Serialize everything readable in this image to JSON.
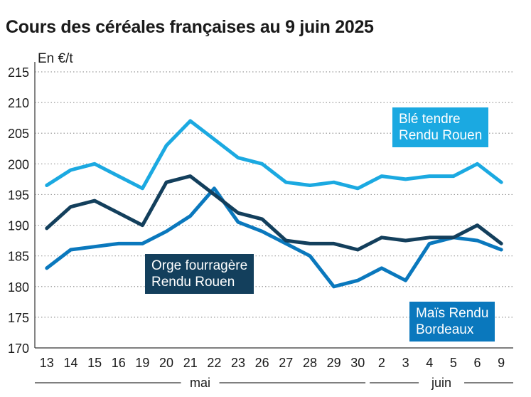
{
  "title": "Cours des céréales françaises au 9 juin 2025",
  "unit_label": "En €/t",
  "chart_data": {
    "type": "line",
    "title": "Cours des céréales françaises au 9 juin 2025",
    "ylabel": "En €/t",
    "ylim": [
      170,
      215
    ],
    "yticks": [
      170,
      175,
      180,
      185,
      190,
      195,
      200,
      205,
      210,
      215
    ],
    "categories": [
      "13",
      "14",
      "15",
      "16",
      "19",
      "20",
      "21",
      "22",
      "23",
      "26",
      "27",
      "28",
      "29",
      "30",
      "2",
      "3",
      "4",
      "5",
      "6",
      "9"
    ],
    "months": [
      {
        "label": "mai",
        "from": 0,
        "to": 13
      },
      {
        "label": "juin",
        "from": 14,
        "to": 19
      }
    ],
    "series": [
      {
        "name": "Blé tendre Rendu Rouen",
        "label_lines": [
          "Blé tendre",
          "Rendu Rouen"
        ],
        "color": "#1ba9e1",
        "values": [
          196.5,
          199,
          200,
          198,
          196,
          203,
          207,
          204,
          201,
          200,
          197,
          196.5,
          197,
          196,
          198,
          197.5,
          198,
          198,
          200,
          197
        ]
      },
      {
        "name": "Orge fourragère Rendu Rouen",
        "label_lines": [
          "Orge fourragère",
          "Rendu Rouen"
        ],
        "color": "#133f5c",
        "values": [
          189.5,
          193,
          194,
          192,
          190,
          197,
          198,
          195,
          192,
          191,
          187.5,
          187,
          187,
          186,
          188,
          187.5,
          188,
          188,
          190,
          187
        ]
      },
      {
        "name": "Maïs Rendu Bordeaux",
        "label_lines": [
          "Maïs Rendu",
          "Bordeaux"
        ],
        "color": "#0a78bd",
        "values": [
          183,
          186,
          186.5,
          187,
          187,
          189,
          191.5,
          196,
          190.5,
          189,
          187,
          185,
          180,
          181,
          183,
          181,
          187,
          188,
          187.5,
          186
        ]
      }
    ]
  }
}
